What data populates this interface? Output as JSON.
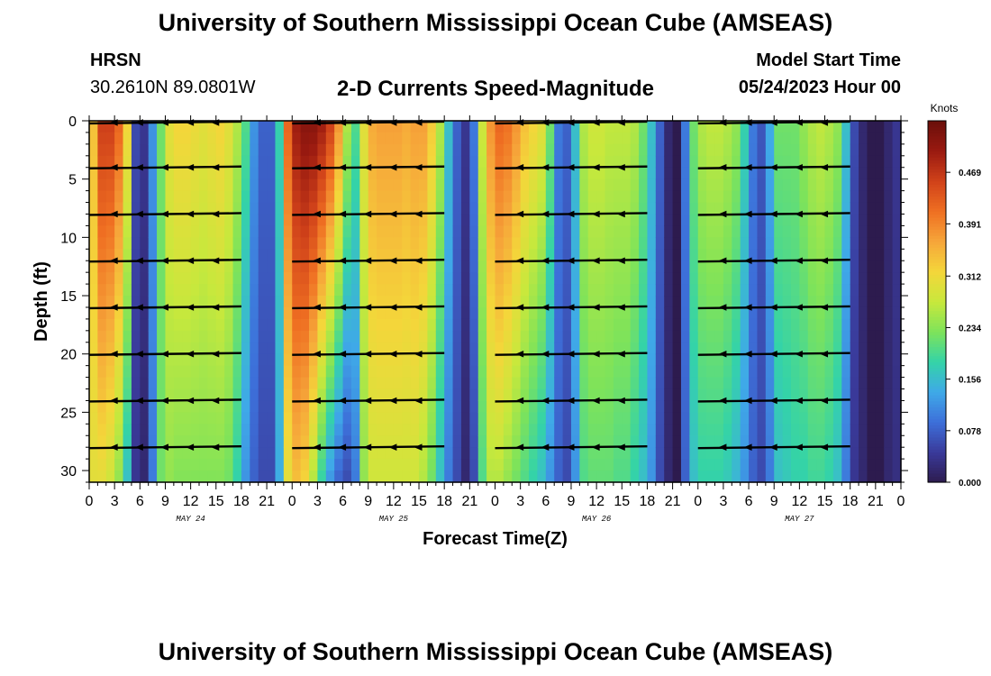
{
  "header": {
    "title": "University of Southern Mississippi Ocean Cube (AMSEAS)",
    "station": "HRSN",
    "coords": "30.2610N  89.0801W",
    "subtitle": "2-D Currents Speed-Magnitude",
    "model_start_label": "Model Start Time",
    "model_start_value": "05/24/2023 Hour 00"
  },
  "footer": {
    "title": "University of Southern Mississippi Ocean Cube (AMSEAS)"
  },
  "colors": {
    "ramp": [
      "#2d1b4e",
      "#3a3a9a",
      "#3d6fd9",
      "#3fa9e8",
      "#34d3a8",
      "#7ee35a",
      "#c8e83c",
      "#f4d63a",
      "#f6a63a",
      "#ef6f22",
      "#d0421a",
      "#9a1a10",
      "#6b0f0b"
    ],
    "arrow": "#000000"
  },
  "chart_data": {
    "type": "heatmap",
    "title": "2-D Currents Speed-Magnitude",
    "xlabel": "Forecast Time(Z)",
    "ylabel": "Depth (ft)",
    "ylim": [
      31,
      0
    ],
    "yticks": [
      0,
      5,
      10,
      15,
      20,
      25,
      30
    ],
    "xlim_hours": [
      0,
      96
    ],
    "xticks": [
      {
        "h": 0,
        "label": "0"
      },
      {
        "h": 3,
        "label": "3"
      },
      {
        "h": 6,
        "label": "6"
      },
      {
        "h": 9,
        "label": "9"
      },
      {
        "h": 12,
        "label": "12"
      },
      {
        "h": 15,
        "label": "15"
      },
      {
        "h": 18,
        "label": "18"
      },
      {
        "h": 21,
        "label": "21"
      },
      {
        "h": 24,
        "label": "0"
      },
      {
        "h": 27,
        "label": "3"
      },
      {
        "h": 30,
        "label": "6"
      },
      {
        "h": 33,
        "label": "9"
      },
      {
        "h": 36,
        "label": "12"
      },
      {
        "h": 39,
        "label": "15"
      },
      {
        "h": 42,
        "label": "18"
      },
      {
        "h": 45,
        "label": "21"
      },
      {
        "h": 48,
        "label": "0"
      },
      {
        "h": 51,
        "label": "3"
      },
      {
        "h": 54,
        "label": "6"
      },
      {
        "h": 57,
        "label": "9"
      },
      {
        "h": 60,
        "label": "12"
      },
      {
        "h": 63,
        "label": "15"
      },
      {
        "h": 66,
        "label": "18"
      },
      {
        "h": 69,
        "label": "21"
      },
      {
        "h": 72,
        "label": "0"
      },
      {
        "h": 75,
        "label": "3"
      },
      {
        "h": 78,
        "label": "6"
      },
      {
        "h": 81,
        "label": "9"
      },
      {
        "h": 84,
        "label": "12"
      },
      {
        "h": 87,
        "label": "15"
      },
      {
        "h": 90,
        "label": "18"
      },
      {
        "h": 93,
        "label": "21"
      },
      {
        "h": 96,
        "label": "0"
      }
    ],
    "day_labels": [
      {
        "h": 12,
        "label": "MAY 24"
      },
      {
        "h": 36,
        "label": "MAY 25"
      },
      {
        "h": 60,
        "label": "MAY 26"
      },
      {
        "h": 84,
        "label": "MAY 27"
      }
    ],
    "colorbar": {
      "unit": "Knots",
      "min": 0.0,
      "max": 0.547,
      "ticks": [
        {
          "v": 0.0,
          "label": "0.000"
        },
        {
          "v": 0.078,
          "label": "0.078"
        },
        {
          "v": 0.156,
          "label": "0.156"
        },
        {
          "v": 0.234,
          "label": "0.234"
        },
        {
          "v": 0.312,
          "label": "0.312"
        },
        {
          "v": 0.391,
          "label": "0.391"
        },
        {
          "v": 0.469,
          "label": "0.469"
        }
      ]
    },
    "speed_profile": {
      "hours": [
        0,
        1,
        2,
        3,
        4,
        5,
        6,
        7,
        8,
        9,
        10,
        11,
        12,
        13,
        14,
        15,
        16,
        17,
        18,
        19,
        20,
        21,
        22,
        23,
        24,
        25,
        26,
        27,
        28,
        29,
        30,
        31,
        32,
        33,
        34,
        35,
        36,
        37,
        38,
        39,
        40,
        41,
        42,
        43,
        44,
        45,
        46,
        47,
        48,
        49,
        50,
        51,
        52,
        53,
        54,
        55,
        56,
        57,
        58,
        59,
        60,
        61,
        62,
        63,
        64,
        65,
        66,
        67,
        68,
        69,
        70,
        71,
        72,
        73,
        74,
        75,
        76,
        77,
        78,
        79,
        80,
        81,
        82,
        83,
        84,
        85,
        86,
        87,
        88,
        89,
        90,
        91,
        92,
        93,
        94,
        95,
        96
      ],
      "surface": [
        0.34,
        0.46,
        0.46,
        0.42,
        0.32,
        0.06,
        0.04,
        0.12,
        0.22,
        0.3,
        0.32,
        0.32,
        0.31,
        0.3,
        0.31,
        0.32,
        0.3,
        0.26,
        0.2,
        0.12,
        0.08,
        0.08,
        0.18,
        0.42,
        0.5,
        0.52,
        0.52,
        0.5,
        0.46,
        0.38,
        0.26,
        0.2,
        0.3,
        0.36,
        0.37,
        0.37,
        0.37,
        0.36,
        0.37,
        0.37,
        0.33,
        0.26,
        0.16,
        0.08,
        0.04,
        0.1,
        0.28,
        0.38,
        0.42,
        0.41,
        0.38,
        0.34,
        0.32,
        0.3,
        0.22,
        0.1,
        0.08,
        0.16,
        0.26,
        0.28,
        0.28,
        0.27,
        0.27,
        0.27,
        0.26,
        0.22,
        0.16,
        0.08,
        0.02,
        0.0,
        0.1,
        0.22,
        0.26,
        0.27,
        0.27,
        0.26,
        0.24,
        0.18,
        0.1,
        0.07,
        0.14,
        0.22,
        0.22,
        0.22,
        0.24,
        0.26,
        0.27,
        0.26,
        0.24,
        0.16,
        0.06,
        0.02,
        0.0,
        0.0,
        0.02,
        0.04,
        0.06
      ],
      "bottom": [
        0.3,
        0.3,
        0.28,
        0.24,
        0.16,
        0.04,
        0.02,
        0.1,
        0.22,
        0.24,
        0.23,
        0.23,
        0.23,
        0.23,
        0.23,
        0.23,
        0.22,
        0.18,
        0.12,
        0.08,
        0.06,
        0.06,
        0.14,
        0.3,
        0.34,
        0.32,
        0.26,
        0.18,
        0.12,
        0.08,
        0.06,
        0.1,
        0.24,
        0.28,
        0.28,
        0.28,
        0.28,
        0.28,
        0.28,
        0.26,
        0.22,
        0.16,
        0.1,
        0.06,
        0.02,
        0.06,
        0.2,
        0.26,
        0.26,
        0.24,
        0.22,
        0.2,
        0.18,
        0.16,
        0.12,
        0.08,
        0.06,
        0.12,
        0.2,
        0.21,
        0.21,
        0.21,
        0.2,
        0.2,
        0.18,
        0.16,
        0.12,
        0.06,
        0.02,
        0.0,
        0.08,
        0.16,
        0.18,
        0.18,
        0.18,
        0.17,
        0.15,
        0.12,
        0.08,
        0.06,
        0.1,
        0.16,
        0.17,
        0.18,
        0.18,
        0.19,
        0.19,
        0.18,
        0.16,
        0.1,
        0.04,
        0.02,
        0.0,
        0.0,
        0.02,
        0.03,
        0.04
      ]
    },
    "vector_depths_ft": [
      0,
      4,
      8,
      12,
      16,
      20,
      24,
      28
    ],
    "vector_segments": [
      {
        "h0": 0,
        "h1": 18,
        "dir": "west",
        "depth": "all"
      },
      {
        "h0": 24,
        "h1": 42,
        "dir": "west",
        "depth": "all"
      },
      {
        "h0": 48,
        "h1": 66,
        "dir": "west",
        "depth": "all"
      },
      {
        "h0": 72,
        "h1": 90,
        "dir": "west",
        "depth": "all"
      }
    ]
  }
}
